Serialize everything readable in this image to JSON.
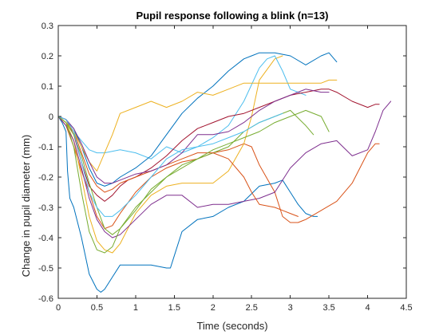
{
  "chart_data": {
    "type": "line",
    "title": "Pupil response following a blink (n=13)",
    "xlabel": "Time (seconds)",
    "ylabel": "Change in pupil diameter (mm)",
    "xlim": [
      0,
      4.5
    ],
    "ylim": [
      -0.6,
      0.3
    ],
    "xticks": [
      0,
      0.5,
      1,
      1.5,
      2,
      2.5,
      3,
      3.5,
      4,
      4.5
    ],
    "yticks": [
      0.3,
      0.2,
      0.1,
      0,
      -0.1,
      -0.2,
      -0.3,
      -0.4,
      -0.5,
      -0.6
    ],
    "xtick_labels": [
      "0",
      "0.5",
      "1",
      "1.5",
      "2",
      "2.5",
      "3",
      "3.5",
      "4",
      "4.5"
    ],
    "ytick_labels": [
      "0.3",
      "0.2",
      "0.1",
      "0",
      "-0.1",
      "-0.2",
      "-0.3",
      "-0.4",
      "-0.5",
      "-0.6"
    ],
    "grid": false,
    "legend": false,
    "series": [
      {
        "color": "#0072BD",
        "x": [
          0,
          0.05,
          0.1,
          0.12,
          0.15,
          0.2,
          0.3,
          0.4,
          0.5,
          0.55,
          0.6,
          0.7,
          0.8,
          0.9,
          1.0,
          1.2,
          1.4,
          1.45,
          1.5,
          1.6,
          1.8,
          2.0,
          2.2,
          2.4,
          2.6,
          2.8,
          2.9,
          3.0,
          3.1,
          3.2,
          3.3,
          3.35
        ],
        "y": [
          0,
          -0.02,
          -0.05,
          -0.18,
          -0.27,
          -0.3,
          -0.4,
          -0.52,
          -0.57,
          -0.58,
          -0.57,
          -0.53,
          -0.49,
          -0.49,
          -0.49,
          -0.49,
          -0.5,
          -0.5,
          -0.46,
          -0.38,
          -0.34,
          -0.33,
          -0.3,
          -0.28,
          -0.23,
          -0.22,
          -0.21,
          -0.25,
          -0.29,
          -0.32,
          -0.33,
          -0.33
        ]
      },
      {
        "color": "#D95319",
        "x": [
          0,
          0.1,
          0.2,
          0.3,
          0.4,
          0.5,
          0.6,
          0.7,
          0.8,
          1.0,
          1.2,
          1.4,
          1.6,
          1.8,
          2.0,
          2.2,
          2.4,
          2.5,
          2.6,
          2.8,
          2.9,
          3.0,
          3.1,
          3.2,
          3.4,
          3.6,
          3.8,
          4.0,
          4.1,
          4.15
        ],
        "y": [
          0,
          -0.03,
          -0.1,
          -0.18,
          -0.25,
          -0.33,
          -0.37,
          -0.36,
          -0.32,
          -0.25,
          -0.2,
          -0.17,
          -0.15,
          -0.14,
          -0.12,
          -0.11,
          -0.09,
          -0.1,
          -0.16,
          -0.25,
          -0.33,
          -0.35,
          -0.35,
          -0.34,
          -0.31,
          -0.28,
          -0.22,
          -0.12,
          -0.09,
          -0.09
        ]
      },
      {
        "color": "#EDB120",
        "x": [
          0,
          0.1,
          0.2,
          0.3,
          0.4,
          0.5,
          0.6,
          0.7,
          0.8,
          0.9,
          1.0,
          1.2,
          1.4,
          1.6,
          1.8,
          2.0,
          2.2,
          2.4,
          2.5,
          2.6,
          2.8,
          2.9
        ],
        "y": [
          0,
          -0.02,
          -0.08,
          -0.2,
          -0.33,
          -0.41,
          -0.44,
          -0.45,
          -0.42,
          -0.37,
          -0.32,
          -0.26,
          -0.23,
          -0.22,
          -0.22,
          -0.22,
          -0.18,
          -0.09,
          0.0,
          0.12,
          0.19,
          0.2
        ]
      },
      {
        "color": "#7E2F8E",
        "x": [
          0,
          0.1,
          0.2,
          0.3,
          0.4,
          0.5,
          0.6,
          0.7,
          0.8,
          1.0,
          1.2,
          1.4,
          1.6,
          1.8,
          2.0,
          2.2,
          2.4,
          2.6,
          2.8,
          3.0,
          3.2,
          3.4,
          3.6,
          3.8,
          4.0,
          4.1,
          4.2,
          4.3
        ],
        "y": [
          0,
          -0.03,
          -0.08,
          -0.17,
          -0.27,
          -0.34,
          -0.38,
          -0.4,
          -0.39,
          -0.34,
          -0.29,
          -0.26,
          -0.26,
          -0.3,
          -0.29,
          -0.29,
          -0.28,
          -0.27,
          -0.25,
          -0.17,
          -0.12,
          -0.09,
          -0.08,
          -0.13,
          -0.11,
          -0.05,
          0.02,
          0.05
        ]
      },
      {
        "color": "#77AC30",
        "x": [
          0,
          0.1,
          0.2,
          0.3,
          0.4,
          0.5,
          0.6,
          0.7,
          0.8,
          1.0,
          1.2,
          1.4,
          1.6,
          1.8,
          2.0,
          2.2,
          2.4,
          2.6,
          2.8,
          3.0,
          3.2,
          3.3
        ],
        "y": [
          0,
          -0.02,
          -0.1,
          -0.25,
          -0.38,
          -0.44,
          -0.45,
          -0.43,
          -0.37,
          -0.3,
          -0.25,
          -0.2,
          -0.16,
          -0.14,
          -0.12,
          -0.1,
          -0.05,
          -0.02,
          0.0,
          0.02,
          -0.03,
          -0.06
        ]
      },
      {
        "color": "#4DBEEE",
        "x": [
          0,
          0.1,
          0.2,
          0.3,
          0.4,
          0.5,
          0.6,
          0.8,
          1.0,
          1.2,
          1.4,
          1.6,
          1.8,
          2.0,
          2.2,
          2.4,
          2.6,
          2.7,
          2.8,
          2.9,
          3.0,
          3.1,
          3.2
        ],
        "y": [
          0,
          -0.01,
          -0.05,
          -0.08,
          -0.11,
          -0.12,
          -0.12,
          -0.11,
          -0.12,
          -0.14,
          -0.1,
          -0.12,
          -0.1,
          -0.07,
          -0.03,
          0.05,
          0.16,
          0.19,
          0.2,
          0.15,
          0.09,
          0.08,
          0.07
        ]
      },
      {
        "color": "#A2142F",
        "x": [
          0,
          0.1,
          0.2,
          0.3,
          0.4,
          0.5,
          0.6,
          0.7,
          0.8,
          0.9,
          1.0,
          1.2,
          1.4,
          1.6,
          1.8,
          2.0,
          2.2,
          2.4,
          2.6,
          2.8,
          3.0,
          3.2,
          3.4,
          3.5,
          3.6,
          3.8,
          4.0,
          4.1,
          4.15
        ],
        "y": [
          0,
          -0.01,
          -0.06,
          -0.15,
          -0.23,
          -0.26,
          -0.28,
          -0.26,
          -0.23,
          -0.21,
          -0.2,
          -0.17,
          -0.13,
          -0.08,
          -0.04,
          -0.02,
          0.0,
          0.01,
          0.03,
          0.05,
          0.07,
          0.08,
          0.09,
          0.09,
          0.08,
          0.05,
          0.03,
          0.04,
          0.04
        ]
      },
      {
        "color": "#0072BD",
        "x": [
          0,
          0.1,
          0.2,
          0.3,
          0.4,
          0.5,
          0.6,
          0.7,
          0.8,
          1.0,
          1.2,
          1.4,
          1.6,
          1.8,
          2.0,
          2.2,
          2.4,
          2.5,
          2.6,
          2.8,
          3.0,
          3.2,
          3.4,
          3.5,
          3.6
        ],
        "y": [
          0,
          -0.01,
          -0.04,
          -0.1,
          -0.17,
          -0.22,
          -0.23,
          -0.22,
          -0.2,
          -0.17,
          -0.13,
          -0.06,
          0.01,
          0.06,
          0.1,
          0.15,
          0.19,
          0.2,
          0.21,
          0.21,
          0.2,
          0.17,
          0.2,
          0.21,
          0.18
        ]
      },
      {
        "color": "#D95319",
        "x": [
          0,
          0.1,
          0.2,
          0.3,
          0.4,
          0.5,
          0.6,
          0.7,
          0.8,
          1.0,
          1.2,
          1.4,
          1.6,
          1.8,
          2.0,
          2.2,
          2.4,
          2.5,
          2.6,
          2.8,
          2.9,
          3.0,
          3.1
        ],
        "y": [
          0,
          -0.01,
          -0.05,
          -0.12,
          -0.19,
          -0.23,
          -0.25,
          -0.24,
          -0.22,
          -0.2,
          -0.18,
          -0.16,
          -0.14,
          -0.12,
          -0.12,
          -0.14,
          -0.2,
          -0.25,
          -0.29,
          -0.3,
          -0.31,
          -0.32,
          -0.33
        ]
      },
      {
        "color": "#EDB120",
        "x": [
          0,
          0.1,
          0.2,
          0.3,
          0.4,
          0.5,
          0.6,
          0.7,
          0.8,
          1.0,
          1.2,
          1.4,
          1.6,
          1.8,
          2.0,
          2.2,
          2.4,
          2.6,
          2.8,
          3.0,
          3.2,
          3.4,
          3.5,
          3.6
        ],
        "y": [
          0,
          -0.02,
          -0.05,
          -0.1,
          -0.15,
          -0.18,
          -0.12,
          -0.06,
          0.01,
          0.03,
          0.05,
          0.03,
          0.05,
          0.08,
          0.07,
          0.09,
          0.11,
          0.11,
          0.11,
          0.11,
          0.11,
          0.11,
          0.12,
          0.12
        ]
      },
      {
        "color": "#7E2F8E",
        "x": [
          0,
          0.1,
          0.2,
          0.3,
          0.4,
          0.5,
          0.6,
          0.7,
          0.8,
          1.0,
          1.2,
          1.4,
          1.6,
          1.8,
          2.0,
          2.2,
          2.4,
          2.6,
          2.8,
          3.0,
          3.2,
          3.4,
          3.5
        ],
        "y": [
          0,
          -0.01,
          -0.04,
          -0.09,
          -0.15,
          -0.2,
          -0.22,
          -0.22,
          -0.21,
          -0.19,
          -0.18,
          -0.16,
          -0.12,
          -0.06,
          -0.06,
          -0.05,
          -0.02,
          0.02,
          0.05,
          0.07,
          0.09,
          0.08,
          0.08
        ]
      },
      {
        "color": "#77AC30",
        "x": [
          0,
          0.1,
          0.2,
          0.3,
          0.4,
          0.5,
          0.6,
          0.7,
          0.8,
          1.0,
          1.2,
          1.4,
          1.6,
          1.8,
          2.0,
          2.2,
          2.4,
          2.6,
          2.8,
          3.0,
          3.2,
          3.4,
          3.5
        ],
        "y": [
          0,
          -0.02,
          -0.06,
          -0.13,
          -0.22,
          -0.3,
          -0.37,
          -0.39,
          -0.37,
          -0.31,
          -0.24,
          -0.2,
          -0.17,
          -0.14,
          -0.11,
          -0.09,
          -0.07,
          -0.05,
          -0.02,
          0.0,
          0.02,
          0.0,
          -0.05
        ]
      },
      {
        "color": "#4DBEEE",
        "x": [
          0,
          0.1,
          0.2,
          0.3,
          0.4,
          0.5,
          0.6,
          0.7,
          0.8,
          1.0,
          1.2,
          1.4,
          1.6,
          1.8,
          2.0,
          2.2,
          2.4,
          2.6,
          2.8,
          2.9
        ],
        "y": [
          0,
          -0.01,
          -0.05,
          -0.15,
          -0.25,
          -0.3,
          -0.33,
          -0.33,
          -0.31,
          -0.26,
          -0.2,
          -0.14,
          -0.11,
          -0.1,
          -0.09,
          -0.07,
          -0.05,
          -0.02,
          0.0,
          0.01
        ]
      }
    ]
  }
}
